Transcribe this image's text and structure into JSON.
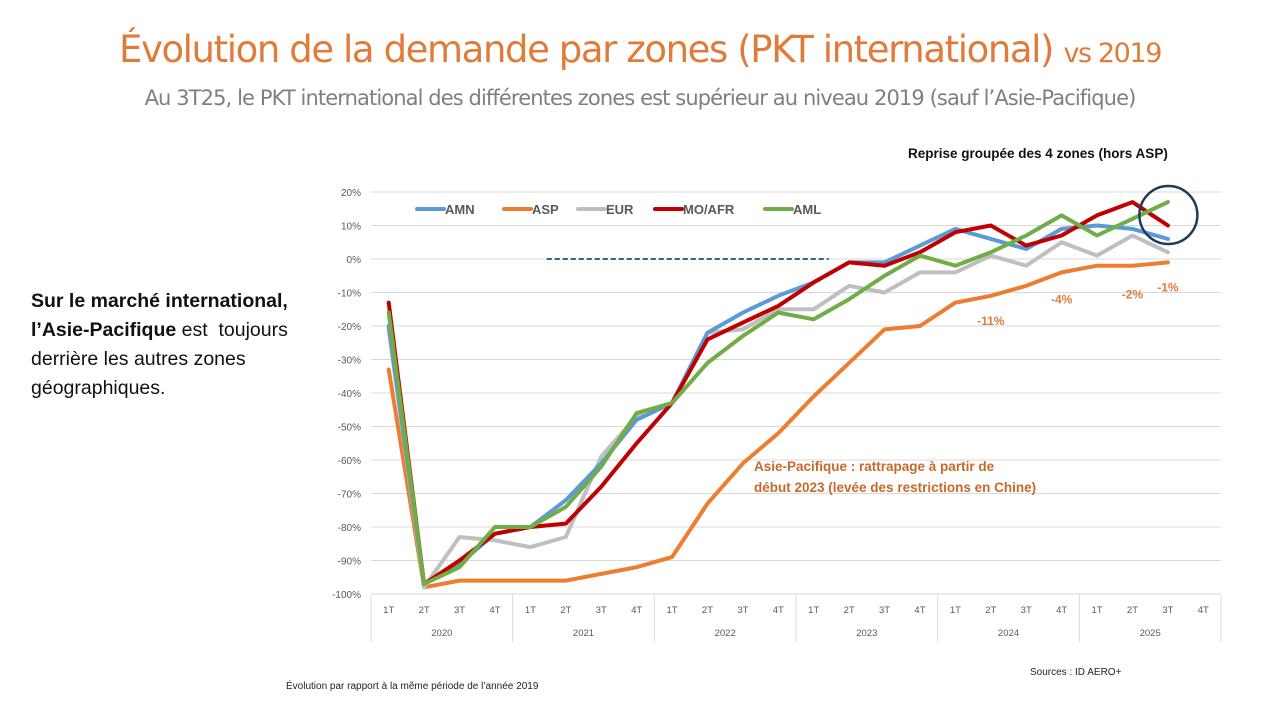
{
  "header": {
    "title": "Évolution de la demande par zones (PKT international)",
    "title_suffix": "vs 2019",
    "subtitle": "Au 3T25, le PKT international des différentes zones est supérieur au niveau 2019 (sauf l’Asie-Pacifique)"
  },
  "side_text": {
    "bold_1": "Sur le marché international,",
    "bold_2": "l’Asie-Pacifique",
    "rest_2": " est  toujours",
    "line_3": "derrière les autres zones",
    "line_4": "géographiques."
  },
  "annotations": {
    "reprise": "Reprise groupée des 4 zones (hors ASP)",
    "asp_line1": "Asie-Pacifique : rattrapage à partir de",
    "asp_line2": "début 2023 (levée des restrictions en Chine)"
  },
  "footer": {
    "note": "Évolution par rapport à la même période de l’année 2019",
    "source": "Sources : ID AERO+"
  },
  "chart_data": {
    "type": "line",
    "title": "",
    "xlabel": "",
    "ylabel": "",
    "ylim": [
      -100,
      20
    ],
    "y_ticks": [
      "20%",
      "10%",
      "0%",
      "-10%",
      "-20%",
      "-30%",
      "-40%",
      "-50%",
      "-60%",
      "-70%",
      "-80%",
      "-90%",
      "-100%"
    ],
    "y_tick_values": [
      20,
      10,
      0,
      -10,
      -20,
      -30,
      -40,
      -50,
      -60,
      -70,
      -80,
      -90,
      -100
    ],
    "grid": true,
    "legend_position": "top-left",
    "years": [
      "2020",
      "2021",
      "2022",
      "2023",
      "2024",
      "2025"
    ],
    "quarters": [
      "1T",
      "2T",
      "3T",
      "4T"
    ],
    "categories": [
      "1T 2020",
      "2T 2020",
      "3T 2020",
      "4T 2020",
      "1T 2021",
      "2T 2021",
      "3T 2021",
      "4T 2021",
      "1T 2022",
      "2T 2022",
      "3T 2022",
      "4T 2022",
      "1T 2023",
      "2T 2023",
      "3T 2023",
      "4T 2023",
      "1T 2024",
      "2T 2024",
      "3T 2024",
      "4T 2024",
      "1T 2025",
      "2T 2025",
      "3T 2025",
      "4T 2025"
    ],
    "series": [
      {
        "name": "AMN",
        "color": "#5b9bd5",
        "values": [
          -20,
          -97,
          -91,
          -82,
          -80,
          -72,
          -61,
          -48,
          -43,
          -22,
          -16,
          -11,
          -7,
          -1,
          -1,
          4,
          9,
          6,
          3,
          9,
          10,
          9,
          6
        ]
      },
      {
        "name": "ASP",
        "color": "#ed7d31",
        "values": [
          -33,
          -98,
          -96,
          -96,
          -96,
          -96,
          -94,
          -92,
          -89,
          -73,
          -61,
          -52,
          -41,
          -31,
          -21,
          -20,
          -13,
          -11,
          -8,
          -4,
          -2,
          -2,
          -1
        ]
      },
      {
        "name": "EUR",
        "color": "#bfbfbf",
        "values": [
          -21,
          -98,
          -83,
          -84,
          -86,
          -83,
          -59,
          -47,
          -43,
          -22,
          -21,
          -15,
          -15,
          -8,
          -10,
          -4,
          -4,
          1,
          -2,
          5,
          1,
          7,
          2
        ]
      },
      {
        "name": "MO/AFR",
        "color": "#c00000",
        "values": [
          -13,
          -97,
          -90,
          -82,
          -80,
          -79,
          -68,
          -55,
          -43,
          -24,
          -19,
          -14,
          -7,
          -1,
          -2,
          2,
          8,
          10,
          4,
          7,
          13,
          17,
          10
        ]
      },
      {
        "name": "AML",
        "color": "#70ad47",
        "values": [
          -16,
          -97,
          -92,
          -80,
          -80,
          -74,
          -62,
          -46,
          -43,
          -31,
          -23,
          -16,
          -18,
          -12,
          -5,
          1,
          -2,
          2,
          7,
          13,
          7,
          12,
          17
        ]
      }
    ],
    "data_labels": [
      {
        "series": "ASP",
        "category": "2T 2024",
        "text": "-11%"
      },
      {
        "series": "ASP",
        "category": "4T 2024",
        "text": "-4%"
      },
      {
        "series": "ASP",
        "category": "2T 2025",
        "text": "-2%"
      },
      {
        "series": "ASP",
        "category": "3T 2025",
        "text": "-1%"
      }
    ],
    "reference_line": {
      "value": 0,
      "from": "2T 2021",
      "to": "1T 2023",
      "style": "dashed"
    },
    "highlight_circle": {
      "category": "3T 2025"
    }
  }
}
